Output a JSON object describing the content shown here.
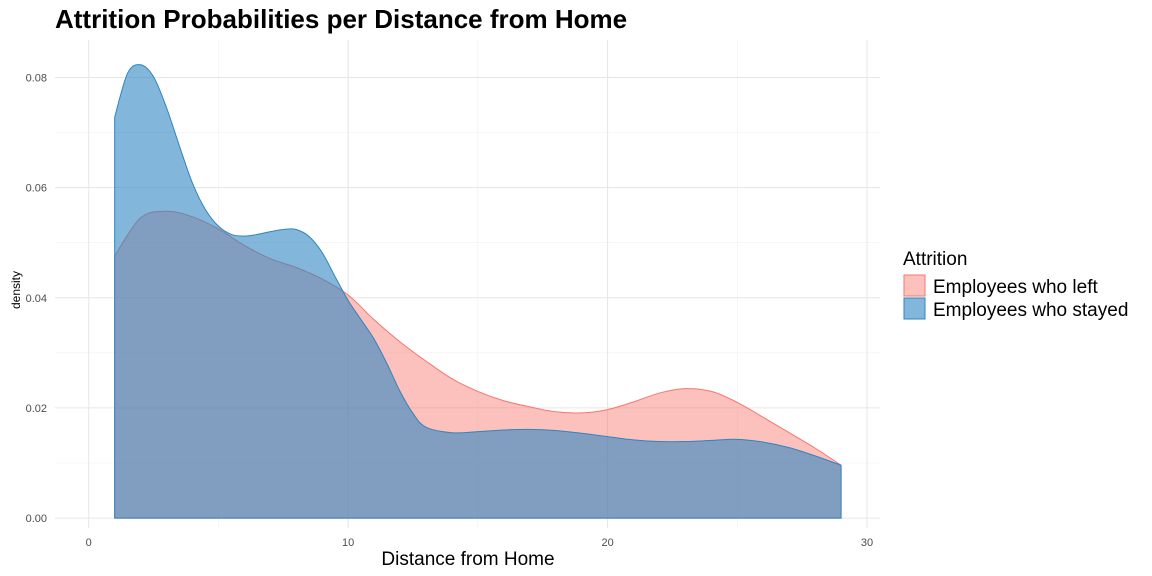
{
  "chart_data": {
    "type": "area",
    "title": "Attrition Probabilities per Distance from Home",
    "xlabel": "Distance from Home",
    "ylabel": "density",
    "xlim": [
      -1.3,
      30.5
    ],
    "ylim": [
      -0.0018,
      0.0868
    ],
    "x_ticks": [
      0,
      10,
      20,
      30
    ],
    "x_tick_labels": [
      "0",
      "10",
      "20",
      "30"
    ],
    "y_ticks": [
      0,
      0.02,
      0.04,
      0.06,
      0.08
    ],
    "y_tick_labels": [
      "0.00",
      "0.02",
      "0.04",
      "0.06",
      "0.08"
    ],
    "grid": true,
    "legend": {
      "title": "Attrition",
      "position": "right"
    },
    "series": [
      {
        "name": "Employees who left",
        "color": "#F8766D",
        "opacity": 0.45,
        "x": [
          1,
          2,
          3,
          4,
          5,
          6,
          7,
          8,
          9,
          10,
          11,
          12,
          13,
          14,
          15,
          16,
          17,
          18,
          19,
          20,
          21,
          22,
          23,
          24,
          25,
          26,
          27,
          28,
          29
        ],
        "values": [
          0.0476,
          0.0545,
          0.0557,
          0.0547,
          0.0525,
          0.0495,
          0.0471,
          0.0455,
          0.0434,
          0.0405,
          0.036,
          0.032,
          0.0285,
          0.0253,
          0.023,
          0.0213,
          0.0202,
          0.0193,
          0.0191,
          0.0197,
          0.0211,
          0.0227,
          0.0235,
          0.023,
          0.021,
          0.0183,
          0.0155,
          0.0127,
          0.0096
        ]
      },
      {
        "name": "Employees who stayed",
        "color": "#2E86C1",
        "opacity": 0.6,
        "x": [
          1,
          1.5,
          2,
          2.5,
          3,
          3.5,
          4,
          4.5,
          5,
          5.5,
          6,
          6.5,
          7,
          7.5,
          8,
          8.5,
          9,
          9.5,
          10,
          10.5,
          11,
          11.5,
          12,
          12.5,
          13,
          14,
          15,
          16,
          17,
          18,
          19,
          20,
          21,
          22,
          23,
          24,
          25,
          26,
          27,
          28,
          29
        ],
        "values": [
          0.0728,
          0.0808,
          0.0823,
          0.0801,
          0.0745,
          0.0675,
          0.0608,
          0.056,
          0.053,
          0.0515,
          0.0512,
          0.0515,
          0.052,
          0.0524,
          0.0524,
          0.0511,
          0.0482,
          0.0438,
          0.0395,
          0.036,
          0.0325,
          0.028,
          0.023,
          0.019,
          0.0165,
          0.0155,
          0.0157,
          0.016,
          0.0161,
          0.0159,
          0.0154,
          0.0148,
          0.0142,
          0.0139,
          0.0139,
          0.0141,
          0.0143,
          0.0138,
          0.0128,
          0.0113,
          0.0096
        ]
      }
    ]
  }
}
